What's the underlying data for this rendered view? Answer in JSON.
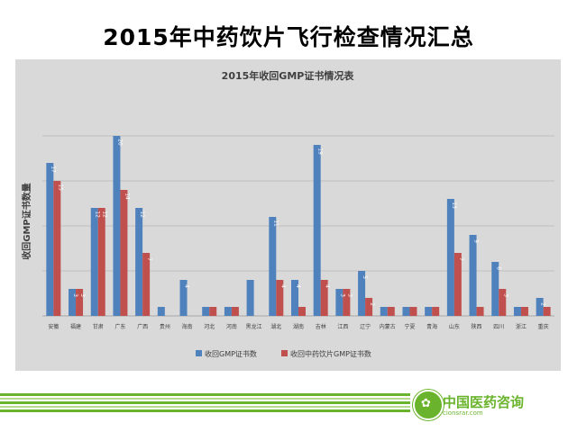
{
  "slide": {
    "title": "2015年中药饮片飞行检查情况汇总"
  },
  "colors": {
    "series1": "#4f81bd",
    "series2": "#c0504d",
    "panel": "#d9d9d9",
    "footer_green": "#6ab42d"
  },
  "logo": {
    "text": "中国医药咨询",
    "sub": "cionsrar.com",
    "icon": "leaf-logo-icon"
  },
  "chart_data": {
    "type": "bar",
    "title": "2015年收回GMP证书情况表",
    "xlabel": "",
    "ylabel": "收回GMP证书数量",
    "ylim": [
      0,
      20
    ],
    "grid": true,
    "legend_position": "bottom",
    "categories": [
      "安徽",
      "福建",
      "甘肃",
      "广东",
      "广西",
      "贵州",
      "海南",
      "河北",
      "河南",
      "黑龙江",
      "湖北",
      "湖南",
      "吉林",
      "江西",
      "辽宁",
      "内蒙古",
      "宁夏",
      "青海",
      "山东",
      "陕西",
      "四川",
      "浙江",
      "重庆"
    ],
    "series": [
      {
        "name": "收回GMP证书数",
        "values": [
          17,
          3,
          12,
          20,
          12,
          1,
          4,
          1,
          1,
          4,
          11,
          4,
          19,
          3,
          5,
          1,
          1,
          1,
          13,
          9,
          6,
          1,
          2
        ]
      },
      {
        "name": "收回中药饮片GMP证书数",
        "values": [
          15,
          3,
          12,
          14,
          7,
          0,
          0,
          1,
          1,
          0,
          4,
          1,
          4,
          3,
          2,
          1,
          1,
          1,
          7,
          1,
          3,
          1,
          1
        ]
      }
    ],
    "data_labels_1": [
      "17",
      "3",
      "12",
      "20",
      "12",
      "",
      "4",
      "",
      "",
      "",
      "11",
      "4",
      "19",
      "3",
      "5",
      "",
      "",
      "",
      "13",
      "9",
      "6",
      "",
      "2"
    ],
    "data_labels_2": [
      "15",
      "3",
      "12",
      "14",
      "7",
      "",
      "",
      "",
      "",
      "",
      "4",
      "",
      "4",
      "3",
      "2",
      "",
      "",
      "",
      "7",
      "",
      "3",
      "",
      ""
    ]
  }
}
